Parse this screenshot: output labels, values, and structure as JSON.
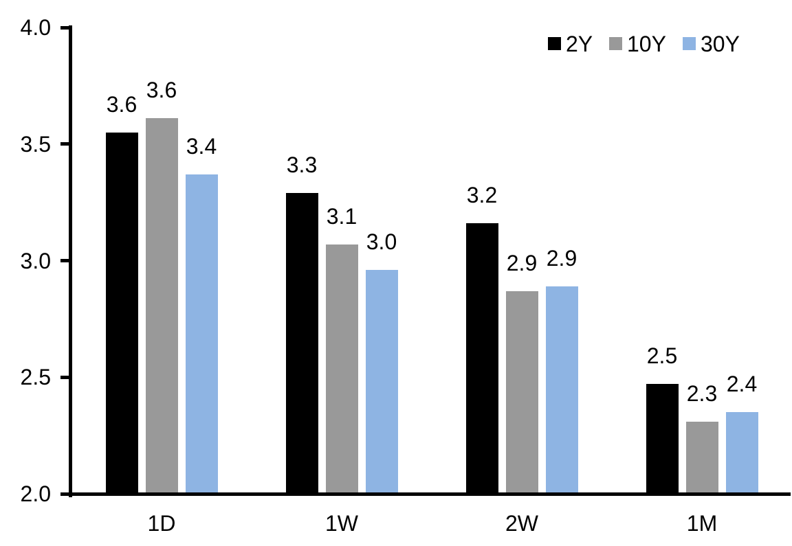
{
  "chart_data": {
    "type": "bar",
    "title": "",
    "categories": [
      "1D",
      "1W",
      "2W",
      "1M"
    ],
    "series": [
      {
        "name": "2Y",
        "color": "#000000",
        "values": [
          3.55,
          3.29,
          3.16,
          2.47
        ],
        "labels": [
          "3.6",
          "3.3",
          "3.2",
          "2.5"
        ]
      },
      {
        "name": "10Y",
        "color": "#999999",
        "values": [
          3.61,
          3.07,
          2.87,
          2.31
        ],
        "labels": [
          "3.6",
          "3.1",
          "2.9",
          "2.3"
        ]
      },
      {
        "name": "30Y",
        "color": "#8EB4E3",
        "values": [
          3.37,
          2.96,
          2.89,
          2.35
        ],
        "labels": [
          "3.4",
          "3.0",
          "2.9",
          "2.4"
        ]
      }
    ],
    "xlabel": "",
    "ylabel": "",
    "ylim": [
      2.0,
      4.0
    ],
    "ytick_values": [
      2.0,
      2.5,
      3.0,
      3.5,
      4.0
    ],
    "ytick_labels": [
      "2.0",
      "2.5",
      "3.0",
      "3.5",
      "4.0"
    ],
    "grid": false,
    "legend_position": "top-right",
    "axis_color": "#000000",
    "background_color": "#FFFFFF",
    "data_label_position": "outside-end"
  }
}
